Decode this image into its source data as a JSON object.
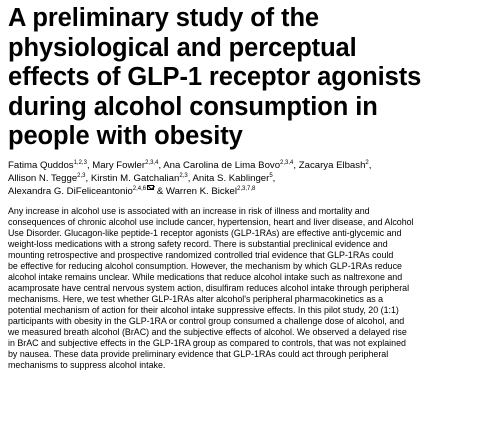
{
  "article": {
    "title_lines": [
      "A preliminary study of the",
      "physiological and perceptual",
      "effects of GLP-1 receptor agonists",
      "during alcohol consumption in",
      "people with obesity"
    ],
    "authors": [
      {
        "name": "Fatima Quddos",
        "aff": "1,2,3",
        "sep": ", "
      },
      {
        "name": "Mary Fowler",
        "aff": "2,3,4",
        "sep": ", "
      },
      {
        "name": "Ana Carolina de Lima Bovo",
        "aff": "2,3,4",
        "sep": ", "
      },
      {
        "name": "Zacarya Elbash",
        "aff": "2",
        "sep": ","
      },
      {
        "name": "Allison N. Tegge",
        "aff": "2,3",
        "sep": ", "
      },
      {
        "name": "Kirstin M. Gatchalian",
        "aff": "2,3",
        "sep": ", "
      },
      {
        "name": "Anita S. Kablinger",
        "aff": "5",
        "sep": ","
      },
      {
        "name": "Alexandra G. DiFeliceantonio",
        "aff": "2,4,6",
        "sep": " & "
      },
      {
        "name": "Warren K. Bickel",
        "aff": "2,3,7,8",
        "sep": ""
      }
    ],
    "abstract_lines": [
      "Any increase in alcohol use is associated with an increase in risk of illness and mortality and",
      "consequences of chronic alcohol use include cancer, hypertension, heart and liver disease, and Alcohol",
      "Use Disorder. Glucagon-like peptide-1 receptor agonists (GLP-1RAs) are effective anti-glycemic and",
      "weight-loss medications with a strong safety record. There is substantial preclinical evidence and",
      "mounting retrospective and prospective randomized controlled trial evidence that GLP-1RAs could",
      "be effective for reducing alcohol consumption. However, the mechanism by which GLP-1RAs reduce",
      "alcohol intake remains unclear. While medications that reduce alcohol intake such as naltrexone and",
      "acamprosate have central nervous system action, disulfiram reduces alcohol intake through peripheral",
      "mechanisms. Here, we test whether GLP-1RAs alter alcohol's peripheral pharmacokinetics as a",
      "potential mechanism of action for their alcohol intake suppressive effects. In this pilot study, 20 (1:1)",
      "participants with obesity in the GLP-1RA or control group consumed a challenge dose of alcohol, and",
      "we measured breath alcohol (BrAC) and the subjective effects of alcohol. We observed a delayed rise",
      "in BrAC and subjective effects in the GLP-1RA group as compared to controls, that was not explained",
      "by nausea. These data provide preliminary evidence that GLP-1RAs could act through peripheral",
      "mechanisms to suppress alcohol intake."
    ]
  }
}
